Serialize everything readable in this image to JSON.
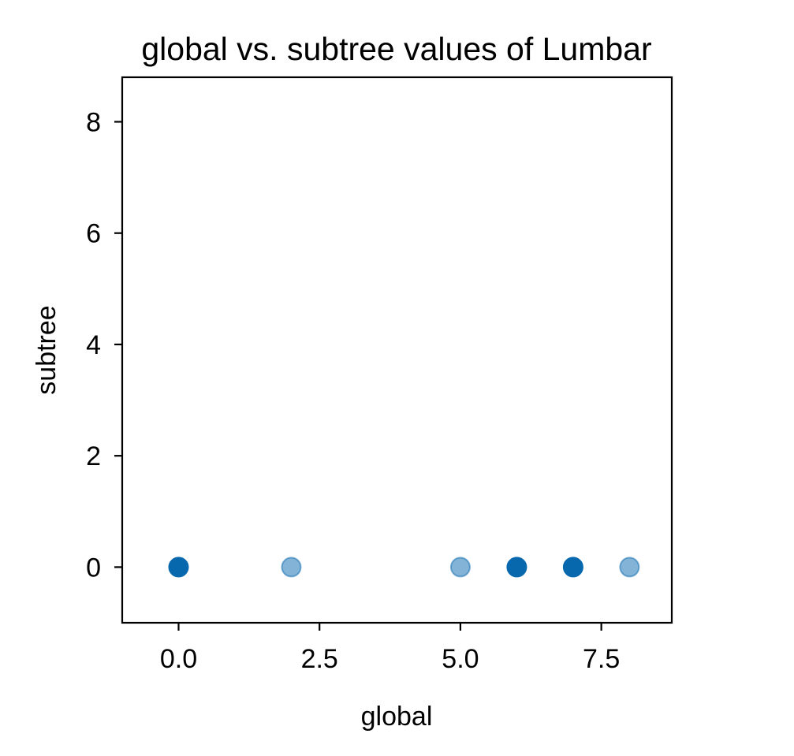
{
  "chart_data": {
    "type": "scatter",
    "title": "global vs. subtree values of Lumbar",
    "xlabel": "global",
    "ylabel": "subtree",
    "xlim": [
      -1,
      8.75
    ],
    "ylim": [
      -1,
      8.8
    ],
    "xticks": [
      0.0,
      2.5,
      5.0,
      7.5
    ],
    "xtick_labels": [
      "0.0",
      "2.5",
      "5.0",
      "7.5"
    ],
    "yticks": [
      0,
      2,
      4,
      6,
      8
    ],
    "ytick_labels": [
      "0",
      "2",
      "4",
      "6",
      "8"
    ],
    "grid": false,
    "marker_color": "#0868ae",
    "points": [
      {
        "x": 0,
        "y": 0,
        "opacity": 1.0
      },
      {
        "x": 2,
        "y": 0,
        "opacity": 0.5
      },
      {
        "x": 5,
        "y": 0,
        "opacity": 0.5
      },
      {
        "x": 6,
        "y": 0,
        "opacity": 1.0
      },
      {
        "x": 7,
        "y": 0,
        "opacity": 1.0
      },
      {
        "x": 8,
        "y": 0,
        "opacity": 0.5
      }
    ]
  }
}
